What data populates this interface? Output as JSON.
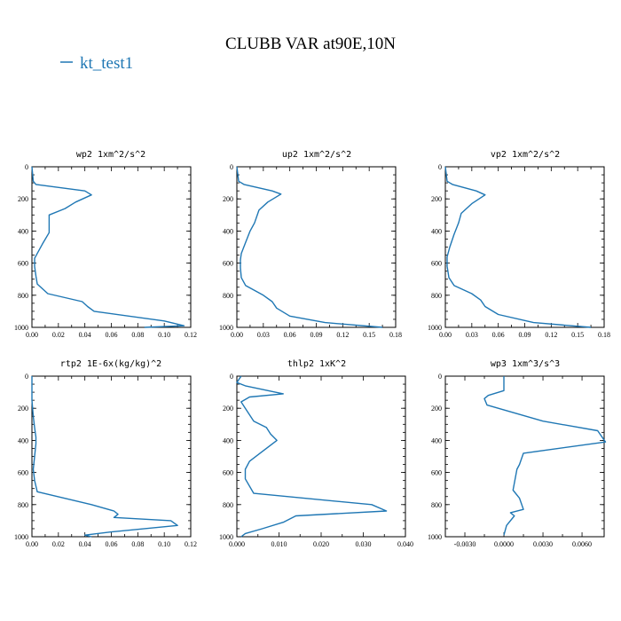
{
  "figure": {
    "title": "CLUBB VAR at90E,10N",
    "legend": [
      {
        "label": "kt_test1",
        "color": "#1f77b4"
      }
    ]
  },
  "chart_data": [
    {
      "type": "line",
      "title": "wp2   1xm^2/s^2",
      "xlabel": "",
      "ylabel": "",
      "xlim": [
        0,
        0.12
      ],
      "ylim": [
        1000,
        0
      ],
      "y_inverted": true,
      "xticks": [
        0,
        0.02,
        0.04,
        0.06,
        0.08,
        0.1,
        0.12
      ],
      "xtick_labels": [
        "0.00",
        "0.02",
        "0.04",
        "0.06",
        "0.08",
        "0.10",
        "0.12"
      ],
      "yticks": [
        0,
        200,
        400,
        600,
        800,
        1000
      ],
      "ytick_labels": [
        "0",
        "200",
        "400",
        "600",
        "800",
        "1000"
      ],
      "series": [
        {
          "name": "kt_test1",
          "color": "#1f77b4",
          "x": [
            0.0,
            0.001,
            0.003,
            0.04,
            0.045,
            0.033,
            0.025,
            0.013,
            0.013,
            0.013,
            0.008,
            0.004,
            0.002,
            0.002,
            0.003,
            0.004,
            0.012,
            0.038,
            0.042,
            0.047,
            0.1,
            0.115,
            0.085
          ],
          "y": [
            0,
            90,
            110,
            150,
            175,
            220,
            260,
            300,
            360,
            410,
            480,
            540,
            570,
            620,
            680,
            730,
            790,
            840,
            870,
            900,
            960,
            990,
            1000
          ]
        }
      ]
    },
    {
      "type": "line",
      "title": "up2   1xm^2/s^2",
      "xlabel": "",
      "ylabel": "",
      "xlim": [
        0,
        0.18
      ],
      "ylim": [
        1000,
        0
      ],
      "y_inverted": true,
      "xticks": [
        0,
        0.03,
        0.06,
        0.09,
        0.12,
        0.15,
        0.18
      ],
      "xtick_labels": [
        "0.00",
        "0.03",
        "0.06",
        "0.09",
        "0.12",
        "0.15",
        "0.18"
      ],
      "yticks": [
        0,
        200,
        400,
        600,
        800,
        1000
      ],
      "ytick_labels": [
        "0",
        "200",
        "400",
        "600",
        "800",
        "1000"
      ],
      "series": [
        {
          "name": "kt_test1",
          "color": "#1f77b4",
          "x": [
            0.0,
            0.002,
            0.008,
            0.04,
            0.05,
            0.035,
            0.025,
            0.02,
            0.015,
            0.01,
            0.005,
            0.004,
            0.004,
            0.005,
            0.01,
            0.03,
            0.04,
            0.045,
            0.06,
            0.1,
            0.165
          ],
          "y": [
            0,
            90,
            110,
            150,
            170,
            220,
            270,
            350,
            400,
            470,
            540,
            580,
            630,
            690,
            740,
            800,
            840,
            880,
            930,
            970,
            1000
          ]
        }
      ]
    },
    {
      "type": "line",
      "title": "vp2   1xm^2/s^2",
      "xlabel": "",
      "ylabel": "",
      "xlim": [
        0,
        0.18
      ],
      "ylim": [
        1000,
        0
      ],
      "y_inverted": true,
      "xticks": [
        0,
        0.03,
        0.06,
        0.09,
        0.12,
        0.15,
        0.18
      ],
      "xtick_labels": [
        "0.00",
        "0.03",
        "0.06",
        "0.09",
        "0.12",
        "0.15",
        "0.18"
      ],
      "yticks": [
        0,
        200,
        400,
        600,
        800,
        1000
      ],
      "ytick_labels": [
        "0",
        "200",
        "400",
        "600",
        "800",
        "1000"
      ],
      "series": [
        {
          "name": "kt_test1",
          "color": "#1f77b4",
          "x": [
            0.0,
            0.002,
            0.008,
            0.035,
            0.045,
            0.03,
            0.018,
            0.015,
            0.01,
            0.005,
            0.002,
            0.002,
            0.004,
            0.01,
            0.03,
            0.04,
            0.045,
            0.06,
            0.1,
            0.165
          ],
          "y": [
            0,
            90,
            110,
            150,
            175,
            230,
            290,
            350,
            420,
            500,
            560,
            620,
            690,
            740,
            790,
            830,
            870,
            920,
            970,
            1000
          ]
        }
      ]
    },
    {
      "type": "line",
      "title": "rtp2   1E-6x(kg/kg)^2",
      "xlabel": "",
      "ylabel": "",
      "xlim": [
        0,
        0.12
      ],
      "ylim": [
        1000,
        0
      ],
      "y_inverted": true,
      "xticks": [
        0,
        0.02,
        0.04,
        0.06,
        0.08,
        0.1,
        0.12
      ],
      "xtick_labels": [
        "0.00",
        "0.02",
        "0.04",
        "0.06",
        "0.08",
        "0.10",
        "0.12"
      ],
      "yticks": [
        0,
        200,
        400,
        600,
        800,
        1000
      ],
      "ytick_labels": [
        "0",
        "200",
        "400",
        "600",
        "800",
        "1000"
      ],
      "series": [
        {
          "name": "kt_test1",
          "color": "#1f77b4",
          "x": [
            0.0,
            0.0,
            0.001,
            0.002,
            0.003,
            0.003,
            0.002,
            0.001,
            0.002,
            0.004,
            0.045,
            0.062,
            0.065,
            0.062,
            0.105,
            0.11,
            0.06,
            0.04,
            0.045
          ],
          "y": [
            0,
            150,
            250,
            320,
            380,
            420,
            500,
            580,
            650,
            720,
            800,
            840,
            860,
            880,
            900,
            930,
            970,
            990,
            1000
          ]
        }
      ]
    },
    {
      "type": "line",
      "title": "thlp2   1xK^2",
      "xlabel": "",
      "ylabel": "",
      "xlim": [
        0,
        0.04
      ],
      "ylim": [
        1000,
        0
      ],
      "y_inverted": true,
      "xticks": [
        0,
        0.01,
        0.02,
        0.03,
        0.04
      ],
      "xtick_labels": [
        "0.000",
        "0.010",
        "0.020",
        "0.030",
        "0.040"
      ],
      "yticks": [
        0,
        200,
        400,
        600,
        800,
        1000
      ],
      "ytick_labels": [
        "0",
        "200",
        "400",
        "600",
        "800",
        "1000"
      ],
      "series": [
        {
          "name": "kt_test1",
          "color": "#1f77b4",
          "x": [
            0.001,
            0.0,
            0.002,
            0.011,
            0.003,
            0.001,
            0.002,
            0.004,
            0.007,
            0.008,
            0.0095,
            0.006,
            0.003,
            0.002,
            0.002,
            0.004,
            0.032,
            0.0355,
            0.014,
            0.011,
            0.006,
            0.002,
            0.001
          ],
          "y": [
            0,
            40,
            60,
            110,
            130,
            160,
            200,
            280,
            320,
            360,
            400,
            470,
            530,
            580,
            640,
            730,
            800,
            840,
            870,
            910,
            950,
            980,
            1000
          ]
        }
      ]
    },
    {
      "type": "line",
      "title": "wp3   1xm^3/s^3",
      "xlabel": "",
      "ylabel": "",
      "xlim": [
        -0.0045,
        0.0077
      ],
      "ylim": [
        1000,
        0
      ],
      "y_inverted": true,
      "xticks": [
        -0.003,
        0.0,
        0.003,
        0.006
      ],
      "xtick_labels": [
        "-0.0030",
        "0.0000",
        "0.0030",
        "0.0060"
      ],
      "yticks": [
        0,
        200,
        400,
        600,
        800,
        1000
      ],
      "ytick_labels": [
        "0",
        "200",
        "400",
        "600",
        "800",
        "1000"
      ],
      "series": [
        {
          "name": "kt_test1",
          "color": "#1f77b4",
          "x": [
            0.0,
            0.0,
            -0.0012,
            -0.0015,
            -0.0013,
            0.003,
            0.0072,
            0.0078,
            0.0015,
            0.0012,
            0.001,
            0.0007,
            0.0012,
            0.0015,
            0.0005,
            0.0008,
            0.0002,
            0.0
          ],
          "y": [
            0,
            90,
            120,
            140,
            180,
            280,
            340,
            410,
            480,
            550,
            580,
            710,
            760,
            830,
            850,
            870,
            930,
            990
          ]
        }
      ]
    }
  ]
}
